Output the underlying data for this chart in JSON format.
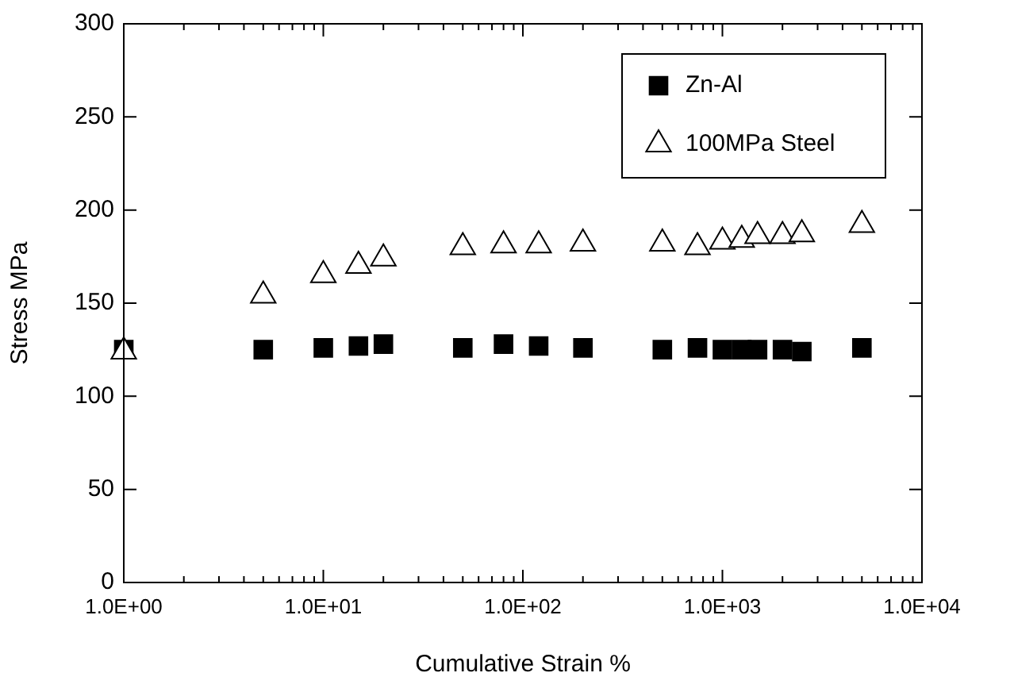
{
  "chart_data": {
    "type": "scatter",
    "xlabel": "Cumulative Strain %",
    "ylabel": "Stress MPa",
    "log": "x",
    "grid": false,
    "legend": "top right",
    "xlim": [
      1,
      10000
    ],
    "xticks": [
      {
        "value": 1,
        "label": "1.0E+00"
      },
      {
        "value": 2,
        "label": null
      },
      {
        "value": 3,
        "label": null
      },
      {
        "value": 4,
        "label": null
      },
      {
        "value": 5,
        "label": null
      },
      {
        "value": 6,
        "label": null
      },
      {
        "value": 7,
        "label": null
      },
      {
        "value": 8,
        "label": null
      },
      {
        "value": 9,
        "label": null
      },
      {
        "value": 10,
        "label": "1.0E+01"
      },
      {
        "value": 20,
        "label": null
      },
      {
        "value": 30,
        "label": null
      },
      {
        "value": 40,
        "label": null
      },
      {
        "value": 50,
        "label": null
      },
      {
        "value": 60,
        "label": null
      },
      {
        "value": 70,
        "label": null
      },
      {
        "value": 80,
        "label": null
      },
      {
        "value": 90,
        "label": null
      },
      {
        "value": 100,
        "label": "1.0E+02"
      },
      {
        "value": 200,
        "label": null
      },
      {
        "value": 300,
        "label": null
      },
      {
        "value": 400,
        "label": null
      },
      {
        "value": 500,
        "label": null
      },
      {
        "value": 600,
        "label": null
      },
      {
        "value": 700,
        "label": null
      },
      {
        "value": 800,
        "label": null
      },
      {
        "value": 900,
        "label": null
      },
      {
        "value": 1000,
        "label": "1.0E+03"
      },
      {
        "value": 2000,
        "label": null
      },
      {
        "value": 3000,
        "label": null
      },
      {
        "value": 4000,
        "label": null
      },
      {
        "value": 5000,
        "label": null
      },
      {
        "value": 6000,
        "label": null
      },
      {
        "value": 7000,
        "label": null
      },
      {
        "value": 8000,
        "label": null
      },
      {
        "value": 9000,
        "label": null
      },
      {
        "value": 10000,
        "label": "1.0E+04"
      }
    ],
    "ylim": [
      0,
      300
    ],
    "yticks": [
      0,
      50,
      100,
      150,
      200,
      250,
      300
    ],
    "x": [
      1,
      5,
      10,
      15,
      20,
      50,
      80,
      120,
      200,
      500,
      750,
      1000,
      1250,
      1500,
      2000,
      2500,
      5000
    ],
    "series": [
      {
        "name": "Zn-Al",
        "color": "#000000",
        "marker": "square",
        "values": [
          125,
          125,
          126,
          127,
          128,
          126,
          128,
          127,
          126,
          125,
          126,
          125,
          125,
          125,
          125,
          124,
          126
        ]
      },
      {
        "name": "100MPa Steel",
        "color": "#000000",
        "marker": "triangle",
        "values": [
          124,
          154,
          165,
          170,
          174,
          180,
          181,
          181,
          182,
          182,
          180,
          183,
          184,
          186,
          186,
          187,
          192
        ]
      }
    ]
  }
}
